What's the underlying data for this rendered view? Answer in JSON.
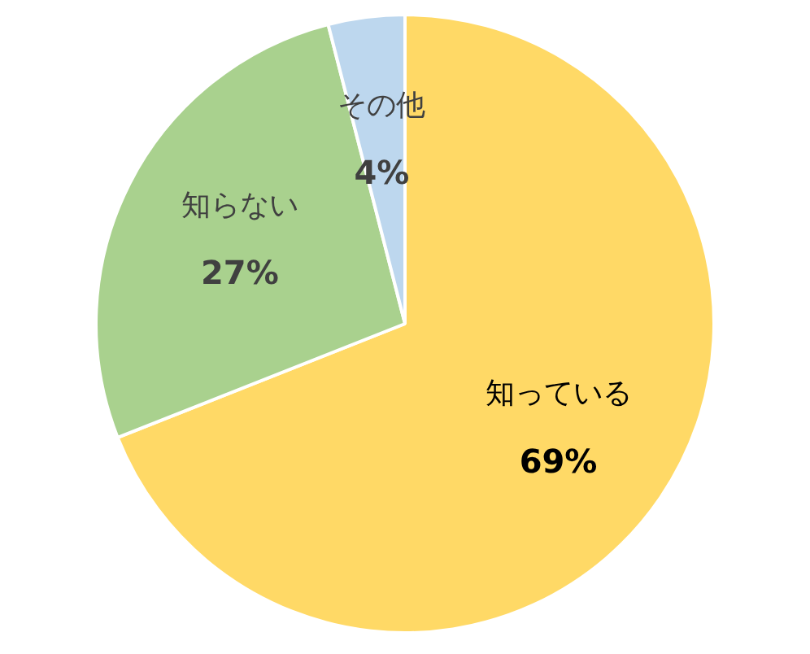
{
  "chart_data": {
    "type": "pie",
    "categories": [
      "知っている",
      "知らない",
      "その他"
    ],
    "values": [
      69,
      27,
      4
    ],
    "colors": [
      "#ffd966",
      "#a9d18e",
      "#bdd7ee"
    ],
    "value_labels": [
      "69%",
      "27%",
      "4%"
    ],
    "legend": false
  }
}
